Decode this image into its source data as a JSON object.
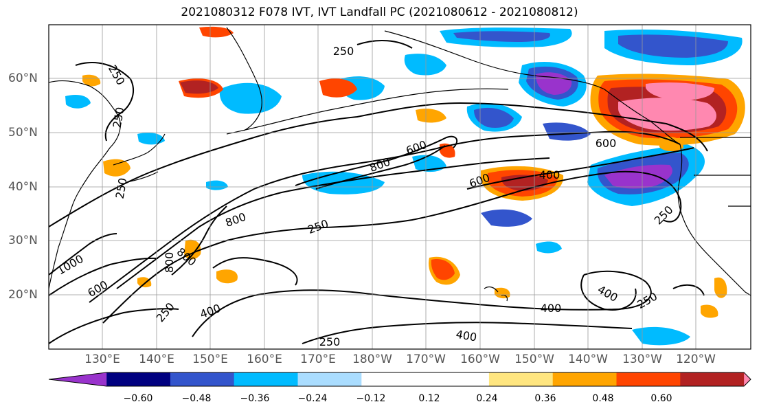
{
  "title": "2021080312 F078 IVT, IVT Landfall PC (2021080612 - 2021080812)",
  "lat_labels": [
    "60°N",
    "50°N",
    "40°N",
    "30°N",
    "20°N"
  ],
  "lon_labels": [
    "130°E",
    "140°E",
    "150°E",
    "160°E",
    "170°E",
    "180°W",
    "170°W",
    "160°W",
    "150°W",
    "140°W",
    "130°W",
    "120°W"
  ],
  "colorbar": {
    "colors": [
      "#9933cc",
      "#000080",
      "#3355cc",
      "#00bbff",
      "#aaddff",
      "#ffffff",
      "#ffffff",
      "#ffe680",
      "#ffa500",
      "#ff4500",
      "#b22222",
      "#ff88b0"
    ],
    "ticks": [
      "−0.60",
      "−0.48",
      "−0.36",
      "−0.24",
      "−0.12",
      "0.12",
      "0.24",
      "0.36",
      "0.48",
      "0.60"
    ]
  },
  "contour_labels": [
    "250",
    "250",
    "250",
    "250",
    "250",
    "250",
    "250",
    "600",
    "600",
    "600",
    "800",
    "800",
    "600",
    "400",
    "400",
    "400",
    "400",
    "400",
    "250",
    "250",
    "600",
    "1000",
    "800",
    "800",
    "600"
  ]
}
